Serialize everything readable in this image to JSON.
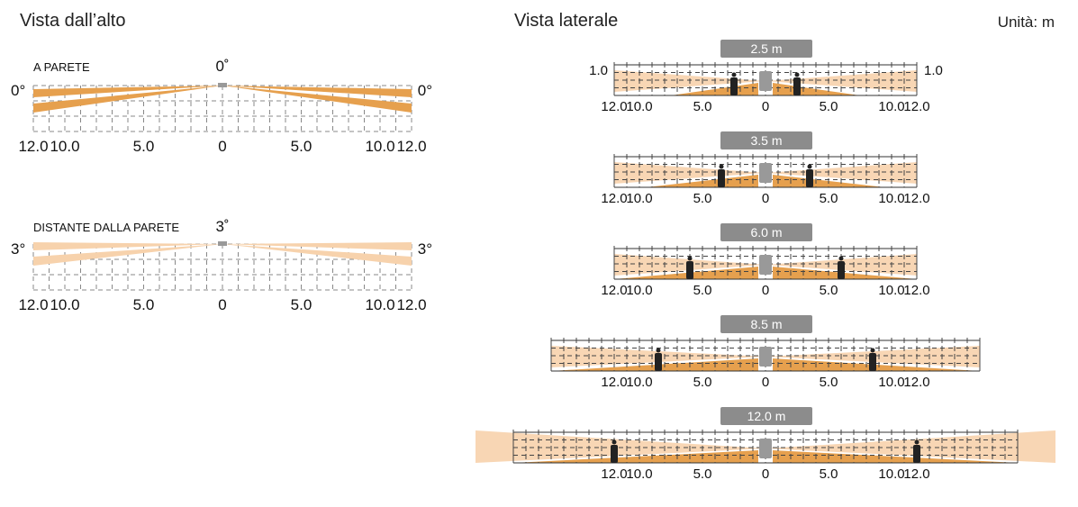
{
  "top_view": {
    "title": "Vista dall’alto",
    "panels": [
      {
        "label": "A PARETE",
        "angle": "0˚",
        "side_angle": "0°",
        "tilt_deg": 0
      },
      {
        "label": "DISTANTE DALLA PARETE",
        "angle": "3˚",
        "side_angle": "3°",
        "tilt_deg": 3
      }
    ],
    "ticks": [
      "12.0",
      "10.0",
      "5.0",
      "0",
      "5.0",
      "10.0",
      "12.0"
    ],
    "tick_values": [
      -12,
      -10,
      -5,
      0,
      5,
      10,
      12
    ]
  },
  "side_view": {
    "title": "Vista laterale",
    "unit": "Unità: m",
    "height_label": "1.0",
    "ticks": [
      "12.0",
      "10.0",
      "5.0",
      "0",
      "5.0",
      "10.0",
      "12.0"
    ],
    "tick_values": [
      -12,
      -10,
      -5,
      0,
      5,
      10,
      12
    ],
    "panels": [
      {
        "label": "2.5 m",
        "height_m": 2.5,
        "grid_range_m": 12,
        "show_height": true
      },
      {
        "label": "3.5 m",
        "height_m": 3.5,
        "grid_range_m": 12,
        "show_height": false
      },
      {
        "label": "6.0 m",
        "height_m": 6.0,
        "grid_range_m": 12,
        "show_height": false
      },
      {
        "label": "8.5 m",
        "height_m": 8.5,
        "grid_range_m": 17,
        "show_height": false
      },
      {
        "label": "12.0 m",
        "height_m": 12.0,
        "grid_range_m": 20,
        "show_height": false
      }
    ]
  },
  "colors": {
    "beam_dark": "#e6a04e",
    "beam_light": "#f7d2ac",
    "label_bg": "#8c8c8c",
    "sensor": "#999999"
  }
}
